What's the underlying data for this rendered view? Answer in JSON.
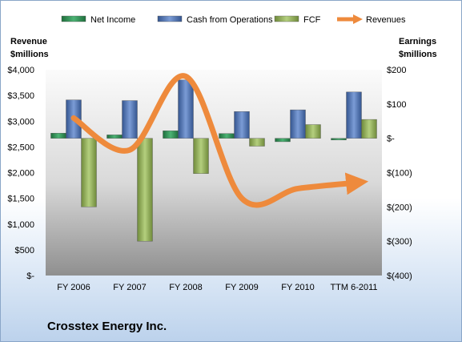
{
  "company": "Crosstex Energy Inc.",
  "chart_data": {
    "type": "bar+line",
    "categories": [
      "FY 2006",
      "FY 2007",
      "FY 2008",
      "FY 2009",
      "FY 2010",
      "TTM 6-2011"
    ],
    "y_left": {
      "label_line1": "Revenue",
      "label_line2": "$millions",
      "ticks": [
        "$-",
        "$500",
        "$1,000",
        "$1,500",
        "$2,000",
        "$2,500",
        "$3,000",
        "$3,500",
        "$4,000"
      ],
      "range": [
        0,
        4000
      ]
    },
    "y_right": {
      "label_line1": "Earnings",
      "label_line2": "$millions",
      "ticks": [
        "$(400)",
        "$(300)",
        "$(200)",
        "$(100)",
        "$-",
        "$100",
        "$200"
      ],
      "range": [
        -400,
        200
      ]
    },
    "legend": {
      "placement": "top"
    },
    "grid": false,
    "series": [
      {
        "name": "Net Income",
        "axis": "right",
        "kind": "bar",
        "color": "#3a9a5c",
        "values": [
          15,
          10,
          22,
          14,
          -10,
          -5
        ]
      },
      {
        "name": "Cash from Operations",
        "axis": "right",
        "kind": "bar",
        "color": "#5a7fbf",
        "values": [
          112,
          110,
          170,
          78,
          83,
          135
        ]
      },
      {
        "name": "FCF",
        "axis": "right",
        "kind": "bar",
        "color": "#9bb865",
        "values": [
          -200,
          -300,
          -103,
          -23,
          40,
          55
        ]
      },
      {
        "name": "Revenues",
        "axis": "left",
        "kind": "line",
        "color": "#ee8a3c",
        "values": [
          3060,
          2440,
          3870,
          1500,
          1690,
          1800
        ]
      }
    ]
  }
}
